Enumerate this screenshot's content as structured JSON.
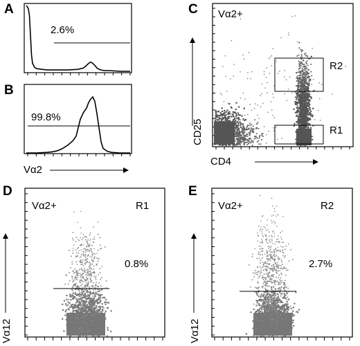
{
  "figure": {
    "panels": {
      "A": {
        "label": "A",
        "gate_percent": "2.6%",
        "histogram": {
          "x": [
            0,
            1,
            2,
            3,
            4,
            5,
            6,
            8,
            10,
            15,
            20,
            30,
            40,
            50,
            55,
            58,
            60,
            62,
            64,
            66,
            68,
            70,
            72,
            75,
            80,
            90,
            100
          ],
          "y": [
            100,
            98,
            95,
            85,
            55,
            25,
            12,
            6,
            4,
            3,
            2,
            2,
            2,
            3,
            5,
            9,
            12,
            14,
            12,
            9,
            5,
            3,
            2,
            1,
            1,
            0,
            0
          ]
        }
      },
      "B": {
        "label": "B",
        "gate_percent": "99.8%",
        "xlabel": "Vα2",
        "histogram": {
          "x": [
            0,
            10,
            20,
            25,
            30,
            35,
            40,
            45,
            48,
            50,
            52,
            55,
            58,
            60,
            62,
            64,
            66,
            68,
            70,
            72,
            74,
            78,
            82,
            90,
            100
          ],
          "y": [
            0,
            0,
            1,
            2,
            4,
            8,
            14,
            22,
            30,
            45,
            60,
            72,
            80,
            90,
            96,
            100,
            92,
            70,
            45,
            20,
            8,
            3,
            1,
            0,
            0
          ]
        }
      },
      "C": {
        "label": "C",
        "title": "Vα2+",
        "xlabel": "CD4",
        "ylabel": "CD25",
        "gates": [
          "R2",
          "R1"
        ]
      },
      "D": {
        "label": "D",
        "title": "Vα2+",
        "gate_name": "R1",
        "gate_percent": "0.8%",
        "ylabel": "Vα12"
      },
      "E": {
        "label": "E",
        "title": "Vα2+",
        "gate_name": "R2",
        "gate_percent": "2.7%",
        "ylabel": "Vα12"
      }
    }
  },
  "chart_data": [
    {
      "type": "line",
      "panel": "A",
      "x": [
        0,
        1,
        2,
        3,
        4,
        5,
        6,
        8,
        10,
        15,
        20,
        30,
        40,
        50,
        55,
        58,
        60,
        62,
        64,
        66,
        68,
        70,
        72,
        75,
        80,
        90,
        100
      ],
      "series": [
        {
          "values": [
            100,
            98,
            95,
            85,
            55,
            25,
            12,
            6,
            4,
            3,
            2,
            2,
            2,
            3,
            5,
            9,
            12,
            14,
            12,
            9,
            5,
            3,
            2,
            1,
            1,
            0,
            0
          ]
        }
      ],
      "annotations": [
        "2.6%"
      ]
    },
    {
      "type": "line",
      "panel": "B",
      "xlabel": "Vα2",
      "x": [
        0,
        10,
        20,
        25,
        30,
        35,
        40,
        45,
        48,
        50,
        52,
        55,
        58,
        60,
        62,
        64,
        66,
        68,
        70,
        72,
        74,
        78,
        82,
        90,
        100
      ],
      "series": [
        {
          "values": [
            0,
            0,
            1,
            2,
            4,
            8,
            14,
            22,
            30,
            45,
            60,
            72,
            80,
            90,
            96,
            100,
            92,
            70,
            45,
            20,
            8,
            3,
            1,
            0,
            0
          ]
        }
      ],
      "annotations": [
        "99.8%"
      ]
    },
    {
      "type": "scatter",
      "panel": "C",
      "title": "Vα2+",
      "xlabel": "CD4",
      "ylabel": "CD25",
      "annotations": [
        "R2",
        "R1"
      ]
    },
    {
      "type": "scatter",
      "panel": "D",
      "title": "Vα2+",
      "ylabel": "Vα12",
      "annotations": [
        "R1",
        "0.8%"
      ]
    },
    {
      "type": "scatter",
      "panel": "E",
      "title": "Vα2+",
      "ylabel": "Vα12",
      "annotations": [
        "R2",
        "2.7%"
      ]
    }
  ]
}
